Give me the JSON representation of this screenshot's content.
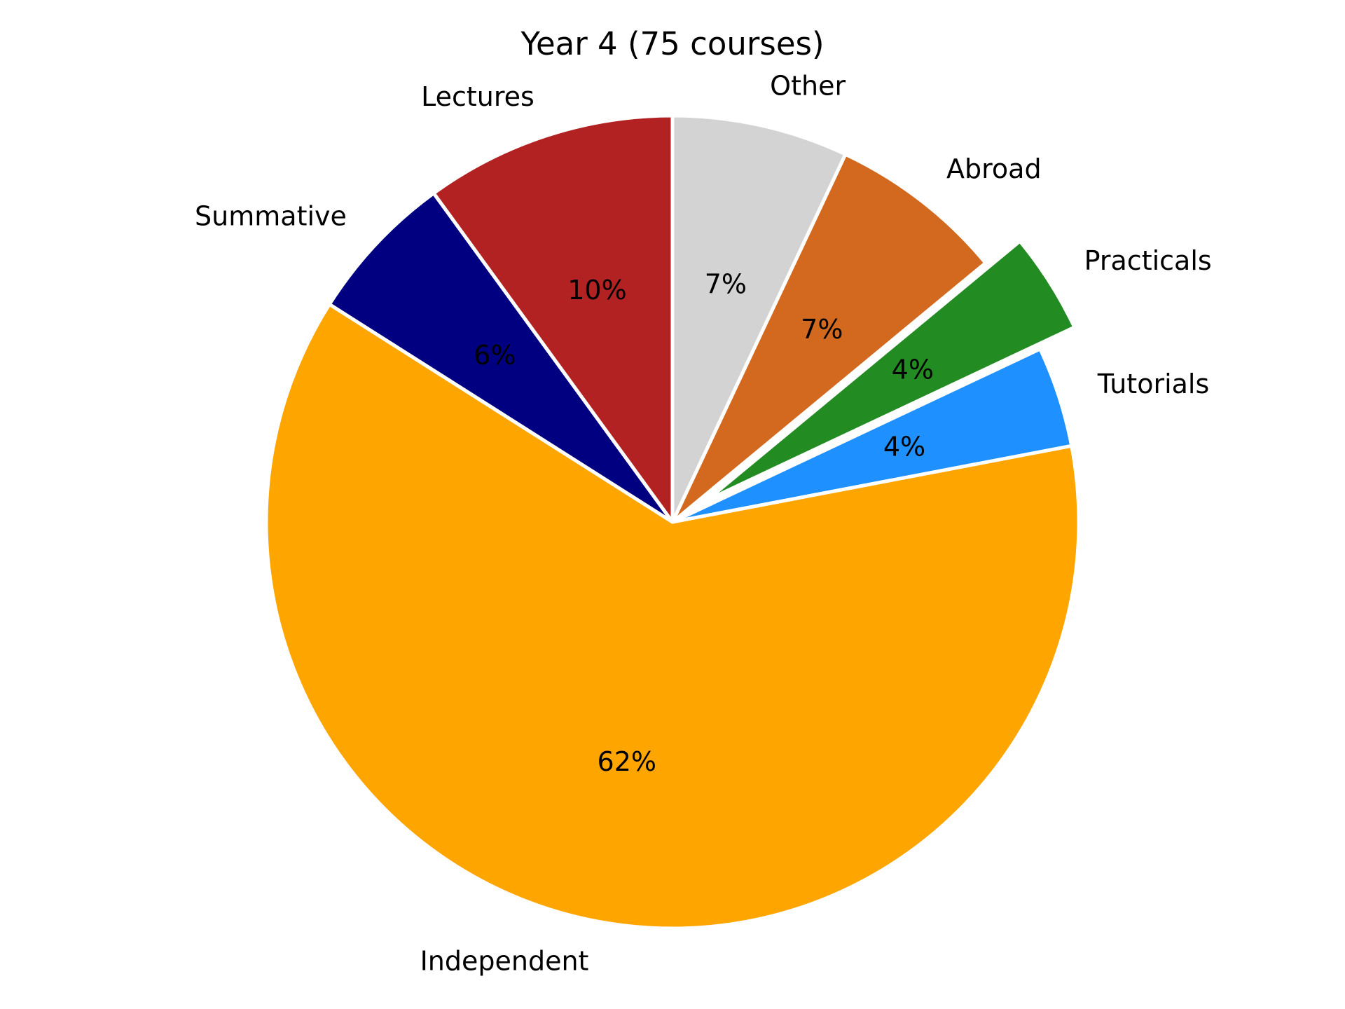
{
  "chart_data": {
    "type": "pie",
    "title": "Year 4 (75 courses)",
    "start_angle_deg": 90,
    "direction": "clockwise",
    "slices": [
      {
        "label": "Other",
        "value": 7,
        "pct_label": "7%",
        "color": "#D3D3D3",
        "exploded": false
      },
      {
        "label": "Abroad",
        "value": 7,
        "pct_label": "7%",
        "color": "#D2691E",
        "exploded": false
      },
      {
        "label": "Practicals",
        "value": 4,
        "pct_label": "4%",
        "color": "#228B22",
        "exploded": true
      },
      {
        "label": "Tutorials",
        "value": 4,
        "pct_label": "4%",
        "color": "#1E90FF",
        "exploded": false
      },
      {
        "label": "Independent",
        "value": 62,
        "pct_label": "62%",
        "color": "#FFA500",
        "exploded": false
      },
      {
        "label": "Summative",
        "value": 6,
        "pct_label": "6%",
        "color": "#000080",
        "exploded": false
      },
      {
        "label": "Lectures",
        "value": 10,
        "pct_label": "10%",
        "color": "#B22222",
        "exploded": false
      }
    ]
  }
}
